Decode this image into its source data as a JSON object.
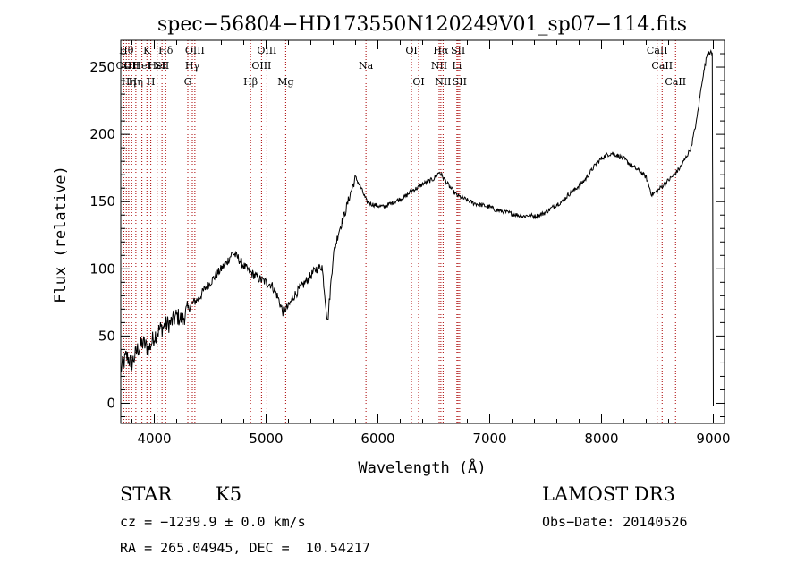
{
  "chart_data": {
    "type": "line",
    "title": "spec−56804−HD173550N120249V01_sp07−114.fits",
    "xlabel": "Wavelength (Å)",
    "ylabel": "Flux (relative)",
    "xlim": [
      3700,
      9100
    ],
    "ylim": [
      -15,
      270
    ],
    "xticks": [
      4000,
      5000,
      6000,
      7000,
      8000,
      9000
    ],
    "yticks": [
      0,
      50,
      100,
      150,
      200,
      250
    ],
    "grid": false,
    "line_color": "#000000",
    "marker_color": "#aa0000",
    "series": [
      {
        "x": [
          3700,
          3750,
          3800,
          3850,
          3900,
          3950,
          4000,
          4050,
          4100,
          4150,
          4200,
          4250,
          4300,
          4350,
          4400,
          4450,
          4500,
          4550,
          4600,
          4650,
          4700,
          4750,
          4800,
          4850,
          4900,
          4950,
          5000,
          5050,
          5100,
          5150,
          5200,
          5250,
          5300,
          5350,
          5400,
          5450,
          5500,
          5550,
          5600,
          5650,
          5700,
          5750,
          5800,
          5850,
          5900,
          5950,
          6000,
          6050,
          6100,
          6150,
          6200,
          6250,
          6300,
          6350,
          6400,
          6450,
          6500,
          6550,
          6600,
          6650,
          6700,
          6750,
          6800,
          6850,
          6900,
          6950,
          7000,
          7050,
          7100,
          7150,
          7200,
          7250,
          7300,
          7350,
          7400,
          7450,
          7500,
          7550,
          7600,
          7650,
          7700,
          7750,
          7800,
          7850,
          7900,
          7950,
          8000,
          8050,
          8100,
          8150,
          8200,
          8250,
          8300,
          8350,
          8400,
          8450,
          8500,
          8550,
          8600,
          8650,
          8700,
          8750,
          8800,
          8850,
          8900,
          8950,
          8990,
          9000
        ],
        "y": [
          25,
          35,
          30,
          40,
          45,
          40,
          50,
          55,
          58,
          60,
          65,
          62,
          70,
          75,
          78,
          85,
          90,
          95,
          100,
          105,
          112,
          108,
          102,
          98,
          95,
          92,
          90,
          88,
          80,
          68,
          72,
          80,
          85,
          90,
          95,
          100,
          102,
          60,
          110,
          128,
          140,
          155,
          168,
          160,
          150,
          148,
          147,
          146,
          148,
          150,
          152,
          154,
          158,
          160,
          163,
          165,
          167,
          172,
          166,
          160,
          155,
          153,
          151,
          149,
          148,
          147,
          146,
          144,
          143,
          142,
          141,
          140,
          139,
          140,
          139,
          140,
          142,
          145,
          148,
          150,
          155,
          158,
          162,
          166,
          172,
          178,
          182,
          185,
          186,
          184,
          182,
          178,
          175,
          172,
          168,
          155,
          158,
          162,
          166,
          170,
          175,
          182,
          190,
          210,
          240,
          262,
          260,
          -2
        ]
      }
    ],
    "line_markers": [
      {
        "x": 3727,
        "label": "OII",
        "row": 1
      },
      {
        "x": 3750,
        "label": "Hθ",
        "row": 0
      },
      {
        "x": 3771,
        "label": "Hη",
        "row": 2
      },
      {
        "x": 3798,
        "label": "OII",
        "row": 1
      },
      {
        "x": 3835,
        "label": "Hη",
        "row": 2
      },
      {
        "x": 3889,
        "label": "HeI",
        "row": 1
      },
      {
        "x": 3934,
        "label": "K",
        "row": 0
      },
      {
        "x": 3969,
        "label": "H",
        "row": 2
      },
      {
        "x": 4026,
        "label": "HeI",
        "row": 1
      },
      {
        "x": 4069,
        "label": "SII",
        "row": 1
      },
      {
        "x": 4102,
        "label": "Hδ",
        "row": 0
      },
      {
        "x": 4300,
        "label": "G",
        "row": 2
      },
      {
        "x": 4340,
        "label": "Hγ",
        "row": 1
      },
      {
        "x": 4363,
        "label": "OIII",
        "row": 0
      },
      {
        "x": 4861,
        "label": "Hβ",
        "row": 2
      },
      {
        "x": 4959,
        "label": "OIII",
        "row": 1
      },
      {
        "x": 5007,
        "label": "OIII",
        "row": 0
      },
      {
        "x": 5175,
        "label": "Mg",
        "row": 2
      },
      {
        "x": 5893,
        "label": "Na",
        "row": 1
      },
      {
        "x": 6300,
        "label": "OI",
        "row": 0
      },
      {
        "x": 6364,
        "label": "OI",
        "row": 2
      },
      {
        "x": 6548,
        "label": "NII",
        "row": 1
      },
      {
        "x": 6563,
        "label": "Hα",
        "row": 0
      },
      {
        "x": 6583,
        "label": "NII",
        "row": 2
      },
      {
        "x": 6707,
        "label": "Li",
        "row": 1
      },
      {
        "x": 6717,
        "label": "SII",
        "row": 0
      },
      {
        "x": 6731,
        "label": "SII",
        "row": 2
      },
      {
        "x": 8498,
        "label": "CaII",
        "row": 0
      },
      {
        "x": 8542,
        "label": "CaII",
        "row": 1
      },
      {
        "x": 8662,
        "label": "CaII",
        "row": 2
      }
    ]
  },
  "info": {
    "object_class": "STAR",
    "subclass": "K5",
    "survey": "LAMOST DR3",
    "redshift": "cz = −1239.9 ± 0.0 km/s",
    "obs_date": "Obs−Date: 20140526",
    "coords": "RA = 265.04945, DEC =  10.54217"
  }
}
